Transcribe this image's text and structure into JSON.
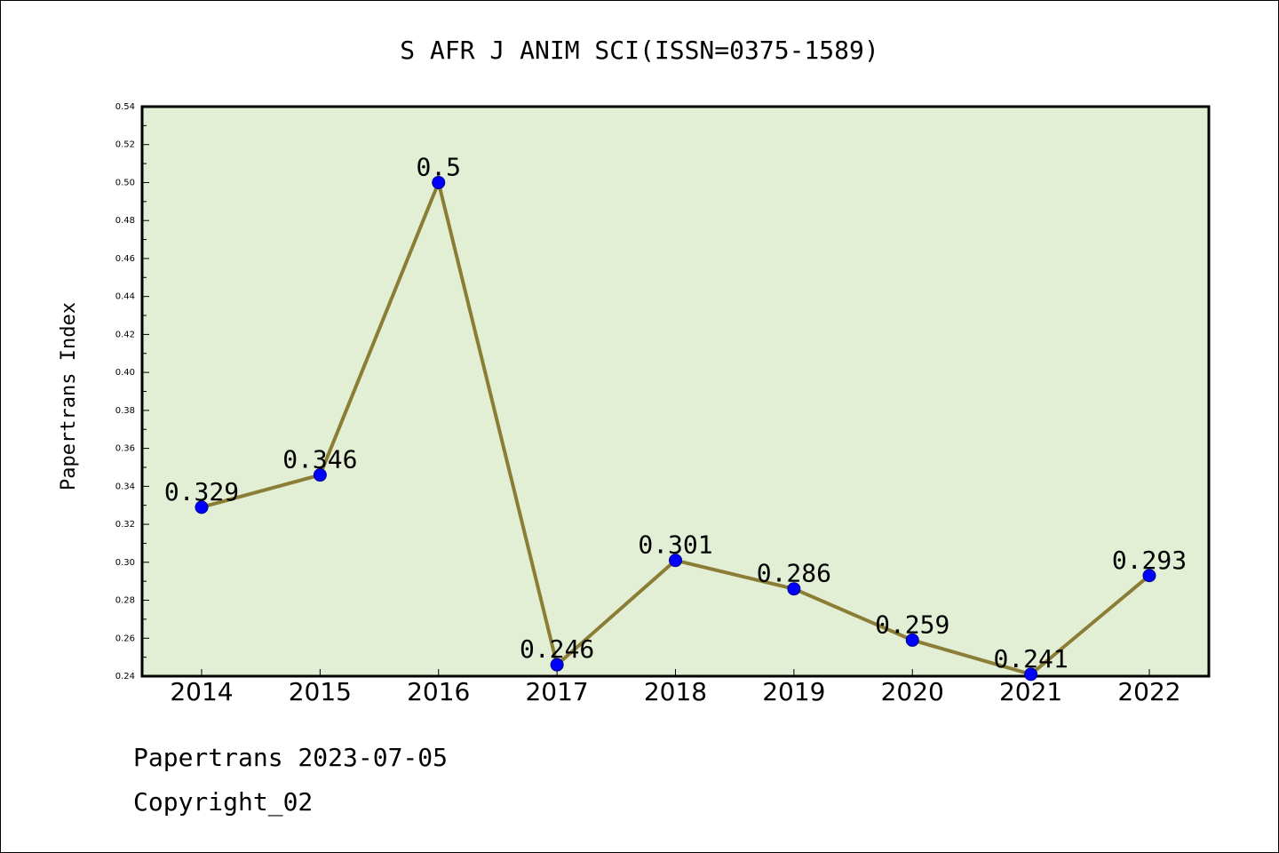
{
  "chart_data": {
    "type": "line",
    "title": "S AFR J ANIM SCI(ISSN=0375-1589)",
    "xlabel": "",
    "ylabel": "Papertrans Index",
    "categories": [
      "2014",
      "2015",
      "2016",
      "2017",
      "2018",
      "2019",
      "2020",
      "2021",
      "2022"
    ],
    "series": [
      {
        "values": [
          0.329,
          0.346,
          0.5,
          0.246,
          0.301,
          0.286,
          0.259,
          0.241,
          0.293
        ],
        "labels": [
          "0.329",
          "0.346",
          "0.5",
          "0.246",
          "0.301",
          "0.286",
          "0.259",
          "0.241",
          "0.293"
        ]
      }
    ],
    "ylim": [
      0.24,
      0.54
    ],
    "yticks": [
      "0.24",
      "0.26",
      "0.28",
      "0.30",
      "0.32",
      "0.34",
      "0.36",
      "0.38",
      "0.40",
      "0.42",
      "0.44",
      "0.46",
      "0.48",
      "0.50",
      "0.52",
      "0.54"
    ],
    "grid": false,
    "colors": {
      "plot_background": "#e2efd5",
      "line": "#8b7d35",
      "marker": "#0000ff"
    }
  },
  "footer": {
    "date_line": "Papertrans 2023-07-05",
    "copyright_line": "Copyright_02"
  }
}
